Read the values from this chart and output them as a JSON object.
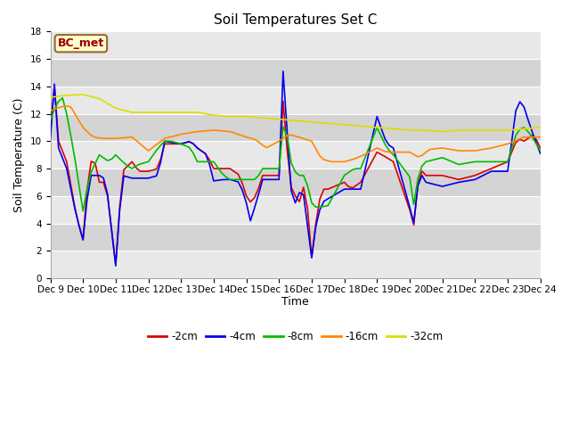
{
  "title": "Soil Temperatures Set C",
  "xlabel": "Time",
  "ylabel": "Soil Temperature (C)",
  "annotation": "BC_met",
  "ylim": [
    0,
    18
  ],
  "yticks": [
    0,
    2,
    4,
    6,
    8,
    10,
    12,
    14,
    16,
    18
  ],
  "xtick_labels": [
    "Dec 9",
    "Dec 10",
    "Dec 11",
    "Dec 12",
    "Dec 13",
    "Dec 14",
    "Dec 15",
    "Dec 16",
    "Dec 17",
    "Dec 18",
    "Dec 19",
    "Dec 20",
    "Dec 21",
    "Dec 22",
    "Dec 23",
    "Dec 24"
  ],
  "series_labels": [
    "-2cm",
    "-4cm",
    "-8cm",
    "-16cm",
    "-32cm"
  ],
  "series_colors": [
    "#dd0000",
    "#0000ee",
    "#00bb00",
    "#ff8800",
    "#dddd00"
  ],
  "fig_bg_color": "#ffffff",
  "plot_bg_light": "#e8e8e8",
  "plot_bg_dark": "#d4d4d4",
  "grid_color": "#ffffff",
  "title_fontsize": 11,
  "label_fontsize": 9,
  "tick_fontsize": 7.5,
  "legend_fontsize": 8.5
}
